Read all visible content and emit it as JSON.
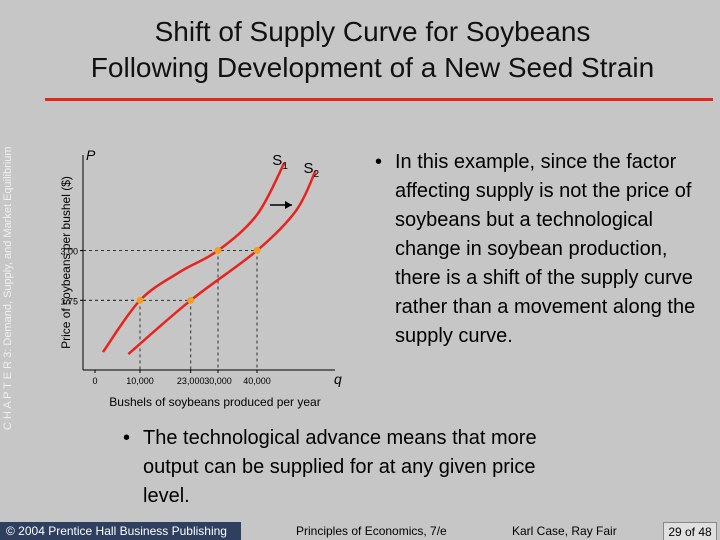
{
  "side_label": "C H A P T E R 3: Demand, Supply, and Market Equilibrium",
  "title": [
    "Shift of Supply Curve for Soybeans",
    "Following Development of a New Seed Strain"
  ],
  "bullets": [
    "In this example, since the factor affecting supply is not the price of soybeans but a technological change in soybean production, there is a shift of the supply curve rather than a movement along the supply curve.",
    "The technological advance means that more output can be supplied for at any given price level."
  ],
  "footer": {
    "copyright": "© 2004 Prentice Hall Business Publishing",
    "book": "Principles of Economics, 7/e",
    "authors": "Karl Case, Ray Fair",
    "page": "29 of 48"
  },
  "chart_data": {
    "type": "line",
    "y_symbol": "P",
    "x_symbol": "q",
    "ylabel": "Price of soybeans per bushel ($)",
    "xlabel": "Bushels of soybeans produced per year",
    "xlim": [
      0,
      60000
    ],
    "ylim": [
      0,
      5.4
    ],
    "xticks": [
      0,
      {
        "value": 10000,
        "label": "10,000"
      },
      {
        "value": 23000,
        "label": "23,000"
      },
      {
        "value": 30000,
        "label": "30,000"
      },
      {
        "value": 40000,
        "label": "40,000"
      }
    ],
    "yticks": [
      1.75,
      {
        "value": 3,
        "label": "3.00"
      }
    ],
    "series": [
      {
        "name": "S",
        "subscript": "1",
        "color": "#e8231e",
        "x": [
          500,
          10000,
          20000,
          30000,
          40000,
          47000
        ],
        "values": [
          0.45,
          1.75,
          2.45,
          3,
          3.9,
          5.2
        ]
      },
      {
        "name": "S",
        "subscript": "2",
        "color": "#e8231e",
        "x": [
          7000,
          23000,
          40000,
          50000,
          55000
        ],
        "values": [
          0.4,
          1.75,
          3,
          4.0,
          5.0
        ]
      }
    ],
    "points": {
      "color": "#f0a020",
      "x": [
        10000,
        30000,
        23000,
        40000
      ],
      "values": [
        1.75,
        3,
        1.75,
        3
      ]
    }
  }
}
